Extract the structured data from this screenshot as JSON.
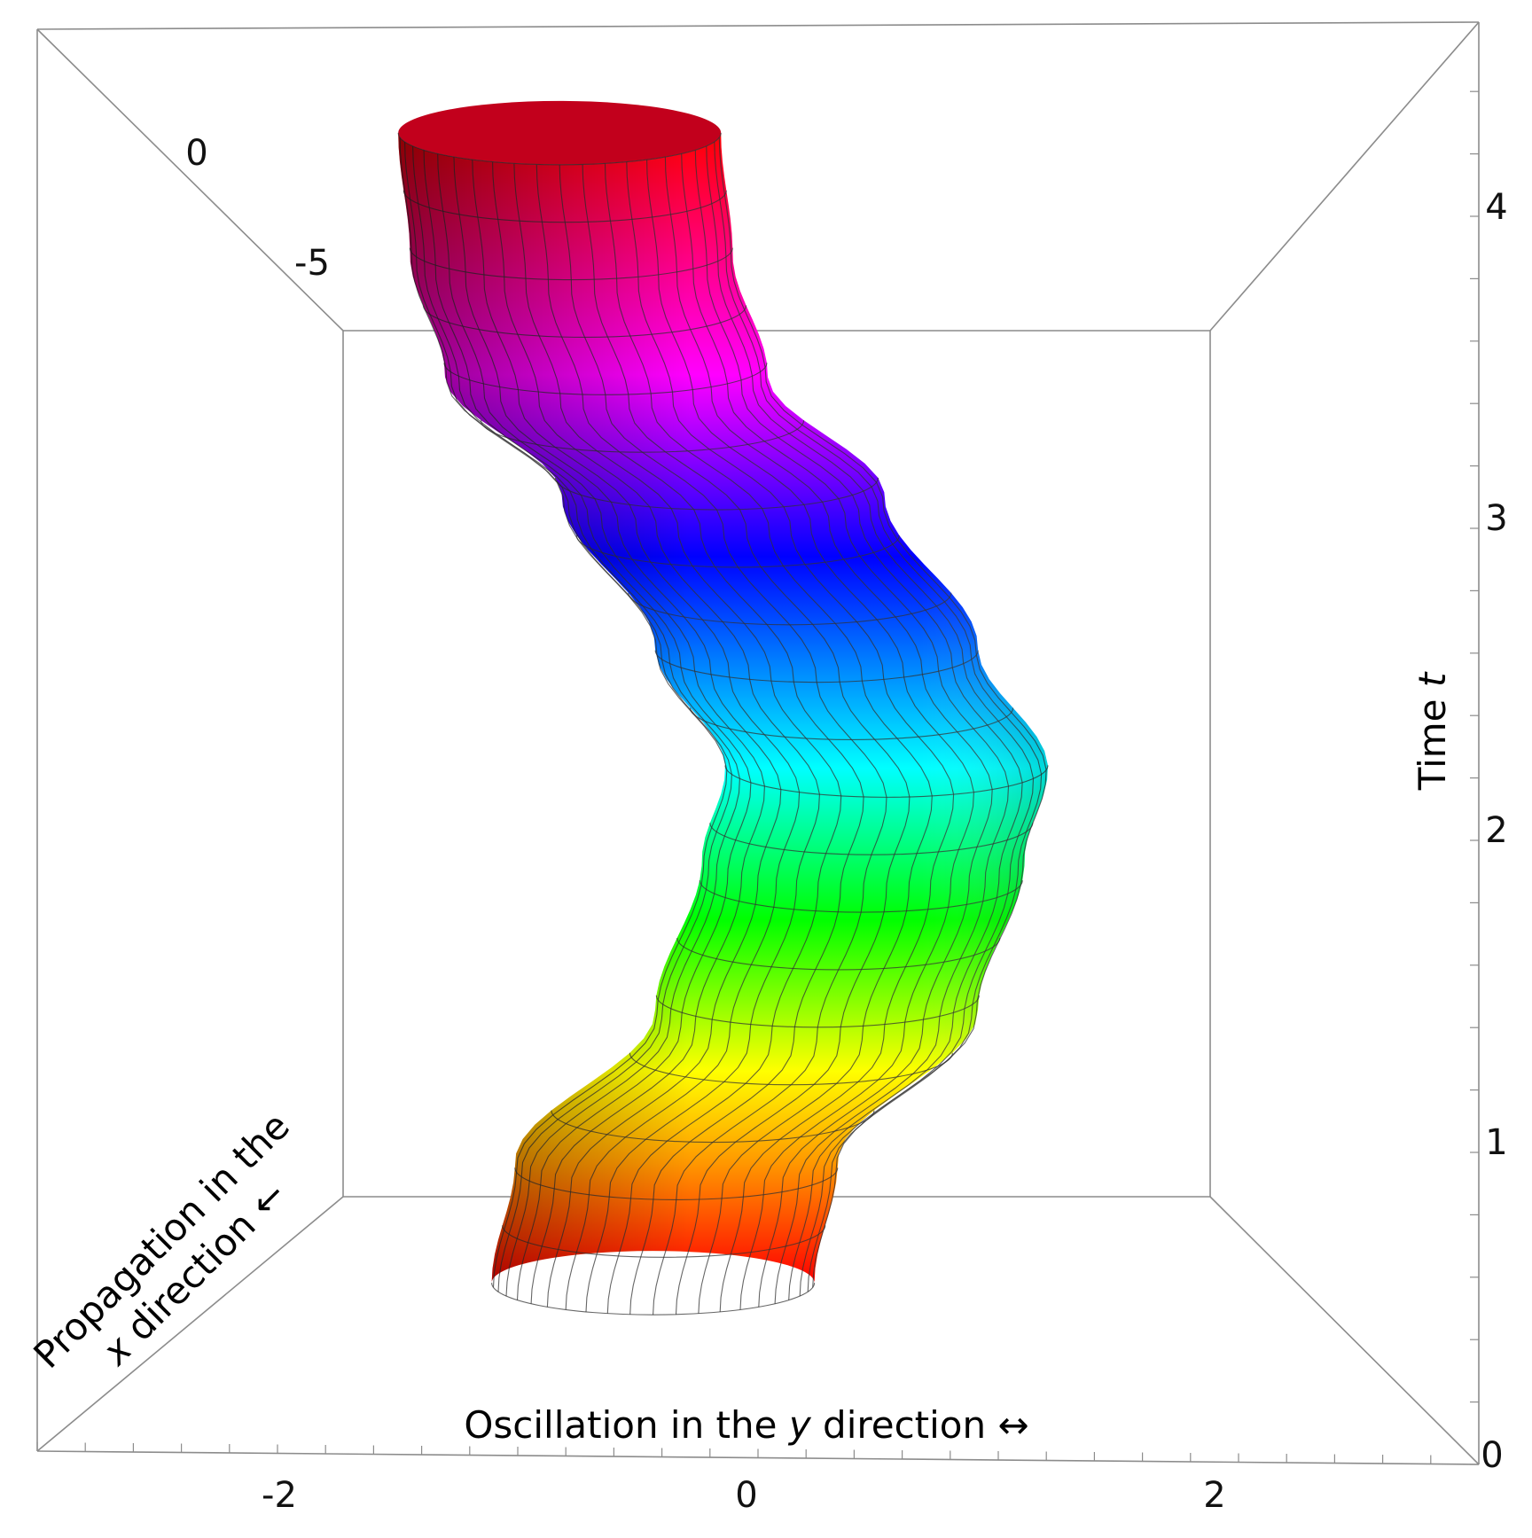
{
  "chart_data": {
    "type": "surface3d",
    "description_words": [
      "oscillating tube",
      "hue colored by time"
    ],
    "axes": {
      "y": {
        "title_before": "Oscillation in the ",
        "title_var": "y",
        "title_after": " direction ↔",
        "ticks": [
          "-2",
          "0",
          "2"
        ],
        "range": [
          -3,
          3
        ]
      },
      "x": {
        "title_line1": "Propagation in the",
        "title_var": "x",
        "title_line2_after": " direction ←",
        "ticks": [
          "0",
          "-5"
        ]
      },
      "t": {
        "title_before": "Time ",
        "title_var": "t",
        "ticks": [
          "0",
          "1",
          "2",
          "3",
          "4"
        ],
        "range": [
          0,
          4.6
        ]
      }
    },
    "surface": {
      "shape": "tube",
      "t_range": [
        0.6,
        4.4
      ],
      "radius": 1.0,
      "center_y_samples": [
        {
          "t": 0.6,
          "y": -0.4
        },
        {
          "t": 1.0,
          "y": -0.3
        },
        {
          "t": 1.5,
          "y": 0.3
        },
        {
          "t": 2.0,
          "y": 0.5
        },
        {
          "t": 2.3,
          "y": 0.6
        },
        {
          "t": 2.7,
          "y": 0.3
        },
        {
          "t": 3.2,
          "y": -0.1
        },
        {
          "t": 3.6,
          "y": -0.6
        },
        {
          "t": 4.0,
          "y": -0.75
        },
        {
          "t": 4.4,
          "y": -0.8
        }
      ],
      "color_stops": [
        {
          "t": 0.6,
          "color": "#ff0000"
        },
        {
          "t": 1.0,
          "color": "#ff9900"
        },
        {
          "t": 1.3,
          "color": "#ffff00"
        },
        {
          "t": 1.8,
          "color": "#00ff00"
        },
        {
          "t": 2.3,
          "color": "#00ffff"
        },
        {
          "t": 3.0,
          "color": "#0000ff"
        },
        {
          "t": 3.6,
          "color": "#ff00ff"
        },
        {
          "t": 4.4,
          "color": "#ff0000"
        }
      ],
      "mesh_color": "#333333"
    },
    "grid": false,
    "box": true
  }
}
